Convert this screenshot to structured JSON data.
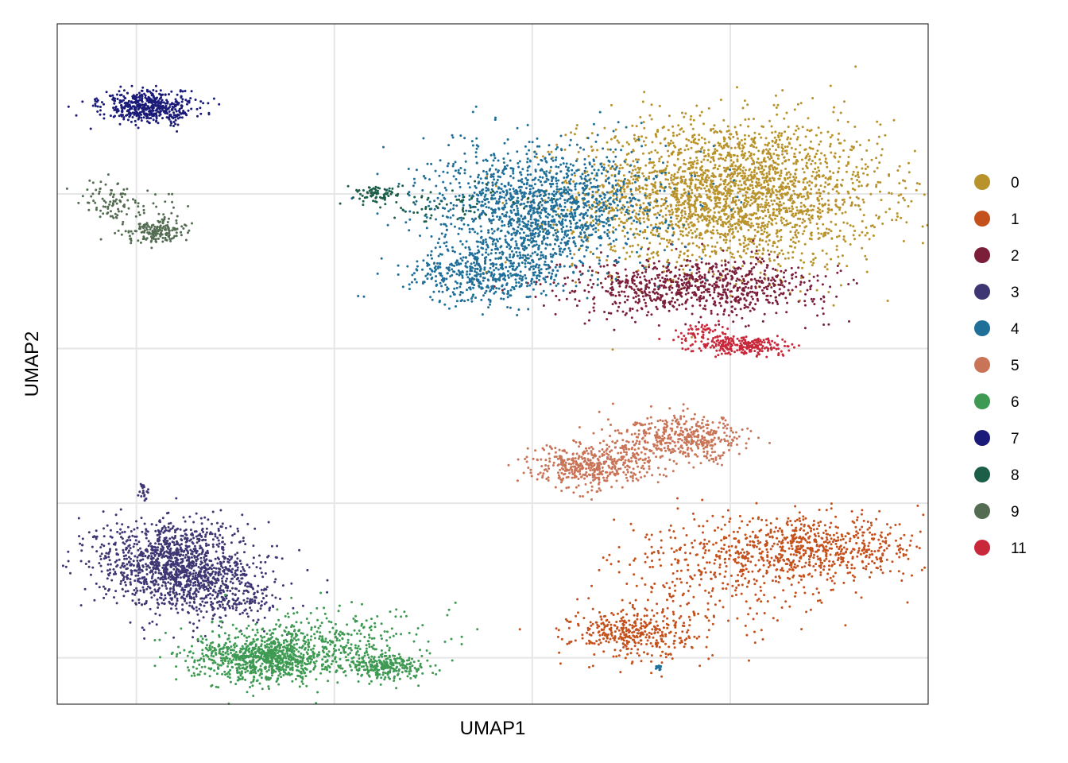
{
  "chart_data": {
    "type": "scatter",
    "title": "",
    "xlabel": "UMAP1",
    "ylabel": "UMAP2",
    "xlim": [
      -1.2,
      12.0
    ],
    "ylim": [
      -10.5,
      11.5
    ],
    "xticks": [
      0,
      3,
      6,
      9
    ],
    "yticks": [
      -9,
      -4,
      1,
      6
    ],
    "tick_labels_shown": false,
    "grid": true,
    "legend_position": "right",
    "series": [
      {
        "name": "0",
        "color": "#B8922A",
        "clusters": [
          {
            "x": 9.0,
            "y": 6.0,
            "sx": 1.15,
            "sy": 1.2,
            "n": 2600
          }
        ]
      },
      {
        "name": "1",
        "color": "#C4501C",
        "clusters": [
          {
            "x": 10.2,
            "y": -5.5,
            "sx": 0.9,
            "sy": 0.5,
            "n": 700
          },
          {
            "x": 7.5,
            "y": -8.2,
            "sx": 0.45,
            "sy": 0.4,
            "n": 350
          },
          {
            "x": 8.7,
            "y": -6.6,
            "sx": 0.8,
            "sy": 1.0,
            "n": 300
          }
        ]
      },
      {
        "name": "2",
        "color": "#7A1E3A",
        "clusters": [
          {
            "x": 8.7,
            "y": 3.0,
            "sx": 0.9,
            "sy": 0.45,
            "n": 700
          },
          {
            "x": 7.3,
            "y": 3.0,
            "sx": 0.6,
            "sy": 0.5,
            "n": 120
          }
        ]
      },
      {
        "name": "3",
        "color": "#3E3673",
        "clusters": [
          {
            "x": 0.5,
            "y": -5.9,
            "sx": 0.55,
            "sy": 0.7,
            "n": 1100
          },
          {
            "x": 1.3,
            "y": -6.8,
            "sx": 0.5,
            "sy": 0.6,
            "n": 400
          },
          {
            "x": 0.1,
            "y": -3.6,
            "sx": 0.05,
            "sy": 0.15,
            "n": 20
          }
        ]
      },
      {
        "name": "4",
        "color": "#1F6F99",
        "clusters": [
          {
            "x": 6.2,
            "y": 5.8,
            "sx": 0.9,
            "sy": 0.9,
            "n": 1200
          },
          {
            "x": 5.3,
            "y": 3.4,
            "sx": 0.6,
            "sy": 0.45,
            "n": 500
          },
          {
            "x": 6.0,
            "y": 4.6,
            "sx": 0.5,
            "sy": 0.7,
            "n": 300
          },
          {
            "x": 7.9,
            "y": -9.3,
            "sx": 0.05,
            "sy": 0.05,
            "n": 12
          }
        ]
      },
      {
        "name": "5",
        "color": "#C97457",
        "clusters": [
          {
            "x": 8.3,
            "y": -1.9,
            "sx": 0.5,
            "sy": 0.35,
            "n": 450
          },
          {
            "x": 6.9,
            "y": -2.8,
            "sx": 0.45,
            "sy": 0.35,
            "n": 450
          }
        ]
      },
      {
        "name": "6",
        "color": "#3E9A52",
        "clusters": [
          {
            "x": 2.0,
            "y": -9.0,
            "sx": 0.55,
            "sy": 0.4,
            "n": 900
          },
          {
            "x": 3.8,
            "y": -9.3,
            "sx": 0.3,
            "sy": 0.2,
            "n": 250
          },
          {
            "x": 2.9,
            "y": -8.4,
            "sx": 0.8,
            "sy": 0.5,
            "n": 300
          }
        ]
      },
      {
        "name": "7",
        "color": "#1A1A78",
        "clusters": [
          {
            "x": 0.2,
            "y": 8.8,
            "sx": 0.35,
            "sy": 0.25,
            "n": 500
          }
        ]
      },
      {
        "name": "8",
        "color": "#1C5E48",
        "clusters": [
          {
            "x": 3.6,
            "y": 6.0,
            "sx": 0.2,
            "sy": 0.15,
            "n": 80
          },
          {
            "x": 4.8,
            "y": 5.6,
            "sx": 0.55,
            "sy": 0.3,
            "n": 60
          }
        ]
      },
      {
        "name": "9",
        "color": "#546D52",
        "clusters": [
          {
            "x": 0.3,
            "y": 4.8,
            "sx": 0.2,
            "sy": 0.18,
            "n": 150
          },
          {
            "x": -0.4,
            "y": 5.8,
            "sx": 0.25,
            "sy": 0.3,
            "n": 70
          },
          {
            "x": 0.2,
            "y": 5.3,
            "sx": 0.35,
            "sy": 0.4,
            "n": 60
          }
        ]
      },
      {
        "name": "11",
        "color": "#C8283A",
        "clusters": [
          {
            "x": 9.2,
            "y": 1.1,
            "sx": 0.35,
            "sy": 0.15,
            "n": 250
          },
          {
            "x": 8.6,
            "y": 1.5,
            "sx": 0.2,
            "sy": 0.15,
            "n": 60
          }
        ]
      }
    ]
  }
}
